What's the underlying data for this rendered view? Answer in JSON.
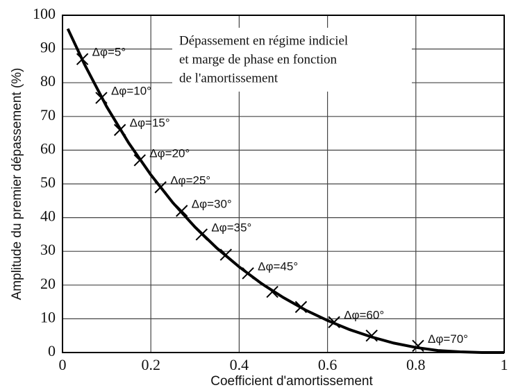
{
  "chart_data": {
    "type": "line",
    "title": [
      "Dépassement en régime indiciel",
      "et marge de phase en fonction",
      "de l'amortissement"
    ],
    "x_label": "Coefficient d'amortissement",
    "y_label": "Amplitude du premier dépassement (%)",
    "x": [
      0.012,
      0.05,
      0.1,
      0.15,
      0.2,
      0.25,
      0.3,
      0.35,
      0.4,
      0.45,
      0.5,
      0.55,
      0.6,
      0.65,
      0.7,
      0.75,
      0.8,
      0.85,
      0.9,
      0.95,
      1.0
    ],
    "series": [
      {
        "color": "#000000",
        "values": [
          96,
          85.4,
          72.9,
          62.1,
          52.7,
          44.4,
          37.2,
          30.9,
          25.4,
          20.5,
          16.3,
          12.6,
          9.5,
          6.8,
          4.6,
          2.8,
          1.5,
          0.6,
          0.2,
          0.0,
          0
        ]
      }
    ],
    "markers": {
      "x": [
        0.045,
        0.088,
        0.13,
        0.175,
        0.222,
        0.27,
        0.315,
        0.37,
        0.42,
        0.475,
        0.54,
        0.615,
        0.7,
        0.805
      ],
      "values": [
        87,
        75.5,
        66,
        57,
        49,
        42,
        35,
        29,
        23.5,
        18,
        13.5,
        9,
        5,
        2
      ],
      "labels": [
        "Δφ=5°",
        "Δφ=10°",
        "Δφ=15°",
        "Δφ=20°",
        "Δφ=25°",
        "Δφ=30°",
        "Δφ=35°",
        null,
        "Δφ=45°",
        null,
        null,
        "Δφ=60°",
        null,
        "Δφ=70°"
      ]
    },
    "xlim": [
      0,
      1
    ],
    "xticks": [
      0,
      0.2,
      0.4,
      0.6,
      0.8,
      1
    ],
    "ylim": [
      0,
      100
    ],
    "yticks": [
      0,
      10,
      20,
      30,
      40,
      50,
      60,
      70,
      80,
      90,
      100
    ],
    "grid": true
  }
}
